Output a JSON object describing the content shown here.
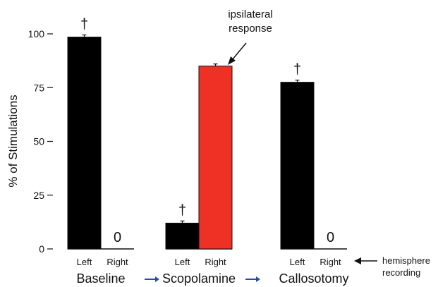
{
  "chart_data": {
    "type": "bar",
    "ylabel": "% of Stimulations",
    "ylim": [
      0,
      100
    ],
    "yticks": [
      0,
      25,
      50,
      75,
      100
    ],
    "ytick_labels": [
      "0",
      "25",
      "50",
      "75",
      "100"
    ],
    "grid": false,
    "groups": [
      {
        "name": "Baseline",
        "bars": [
          {
            "label": "Left",
            "value": 98.5,
            "color": "#000000",
            "marker": "†",
            "error": 1
          },
          {
            "label": "Right",
            "value": 0,
            "color": "#000000",
            "value_label": "0"
          }
        ]
      },
      {
        "name": "Scopolamine",
        "bars": [
          {
            "label": "Left",
            "value": 12,
            "color": "#000000",
            "marker": "†",
            "error": 1
          },
          {
            "label": "Right",
            "value": 85,
            "color": "#ee3124",
            "error": 1
          }
        ]
      },
      {
        "name": "Callosotomy",
        "bars": [
          {
            "label": "Left",
            "value": 77.5,
            "color": "#000000",
            "marker": "†",
            "error": 1
          },
          {
            "label": "Right",
            "value": 0,
            "color": "#000000",
            "value_label": "0"
          }
        ]
      }
    ],
    "arrow_symbol": "→",
    "arrow_color": "#2b4ba0",
    "annotations": {
      "ipsilateral": [
        "ipsilateral",
        "response"
      ],
      "hemisphere": [
        "hemisphere",
        "recording"
      ]
    }
  }
}
